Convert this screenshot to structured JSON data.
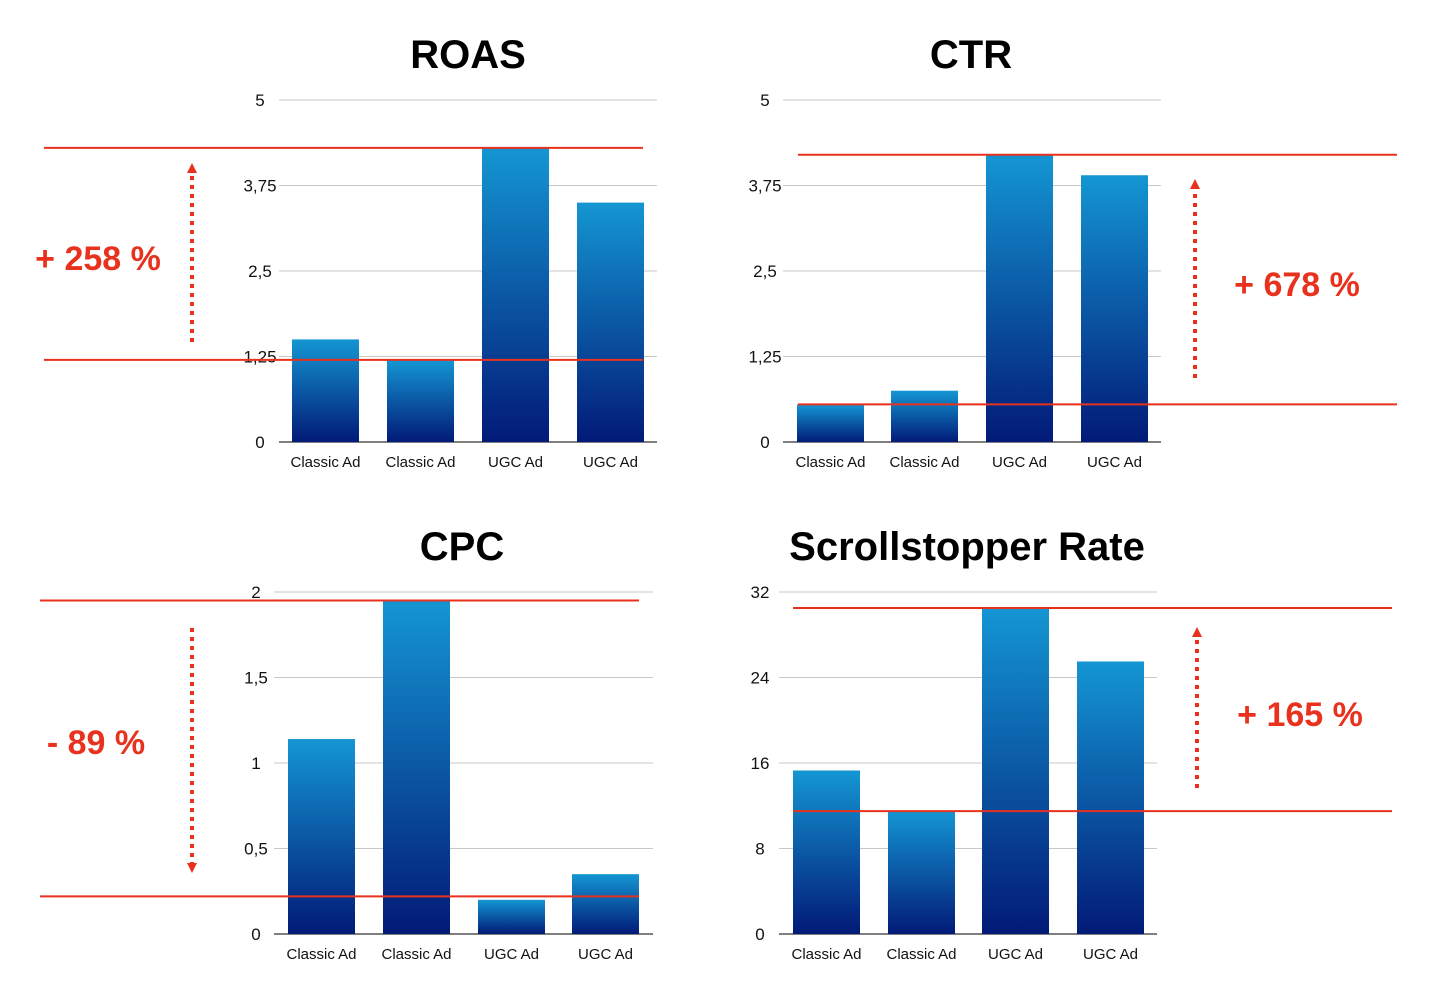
{
  "colors": {
    "bar_top": "#1496d2",
    "bar_bottom": "#021a78",
    "accent": "#e8321e",
    "grid": "#c8c8c8"
  },
  "chart_data": [
    {
      "type": "bar",
      "title": "ROAS",
      "categories": [
        "Classic Ad",
        "Classic Ad",
        "UGC Ad",
        "UGC Ad"
      ],
      "values": [
        1.5,
        1.2,
        4.3,
        3.5
      ],
      "ylim": [
        0,
        5
      ],
      "yticks": [
        0,
        1.25,
        2.5,
        3.75,
        5
      ],
      "ytick_labels": [
        "0",
        "1,25",
        "2,5",
        "3,75",
        "5"
      ],
      "reference_lines": [
        4.3,
        1.2
      ],
      "annotation": {
        "text": "+ 258 %",
        "direction": "up"
      }
    },
    {
      "type": "bar",
      "title": "CTR",
      "categories": [
        "Classic Ad",
        "Classic Ad",
        "UGC Ad",
        "UGC Ad"
      ],
      "values": [
        0.55,
        0.75,
        4.2,
        3.9
      ],
      "ylim": [
        0,
        5
      ],
      "yticks": [
        0,
        1.25,
        2.5,
        3.75,
        5
      ],
      "ytick_labels": [
        "0",
        "1,25",
        "2,5",
        "3,75",
        "5"
      ],
      "reference_lines": [
        4.2,
        0.55
      ],
      "annotation": {
        "text": "+ 678 %",
        "direction": "up"
      }
    },
    {
      "type": "bar",
      "title": "CPC",
      "categories": [
        "Classic Ad",
        "Classic Ad",
        "UGC Ad",
        "UGC Ad"
      ],
      "values": [
        1.14,
        1.95,
        0.2,
        0.35
      ],
      "ylim": [
        0,
        2
      ],
      "yticks": [
        0,
        0.5,
        1,
        1.5,
        2
      ],
      "ytick_labels": [
        "0",
        "0,5",
        "1",
        "1,5",
        "2"
      ],
      "reference_lines": [
        1.95,
        0.22
      ],
      "annotation": {
        "text": "- 89 %",
        "direction": "down"
      }
    },
    {
      "type": "bar",
      "title": "Scrollstopper Rate",
      "categories": [
        "Classic Ad",
        "Classic Ad",
        "UGC Ad",
        "UGC Ad"
      ],
      "values": [
        15.3,
        11.5,
        30.5,
        25.5
      ],
      "ylim": [
        0,
        32
      ],
      "yticks": [
        0,
        8,
        16,
        24,
        32
      ],
      "ytick_labels": [
        "0",
        "8",
        "16",
        "24",
        "32"
      ],
      "reference_lines": [
        30.5,
        11.5
      ],
      "annotation": {
        "text": "+ 165 %",
        "direction": "up"
      }
    }
  ]
}
